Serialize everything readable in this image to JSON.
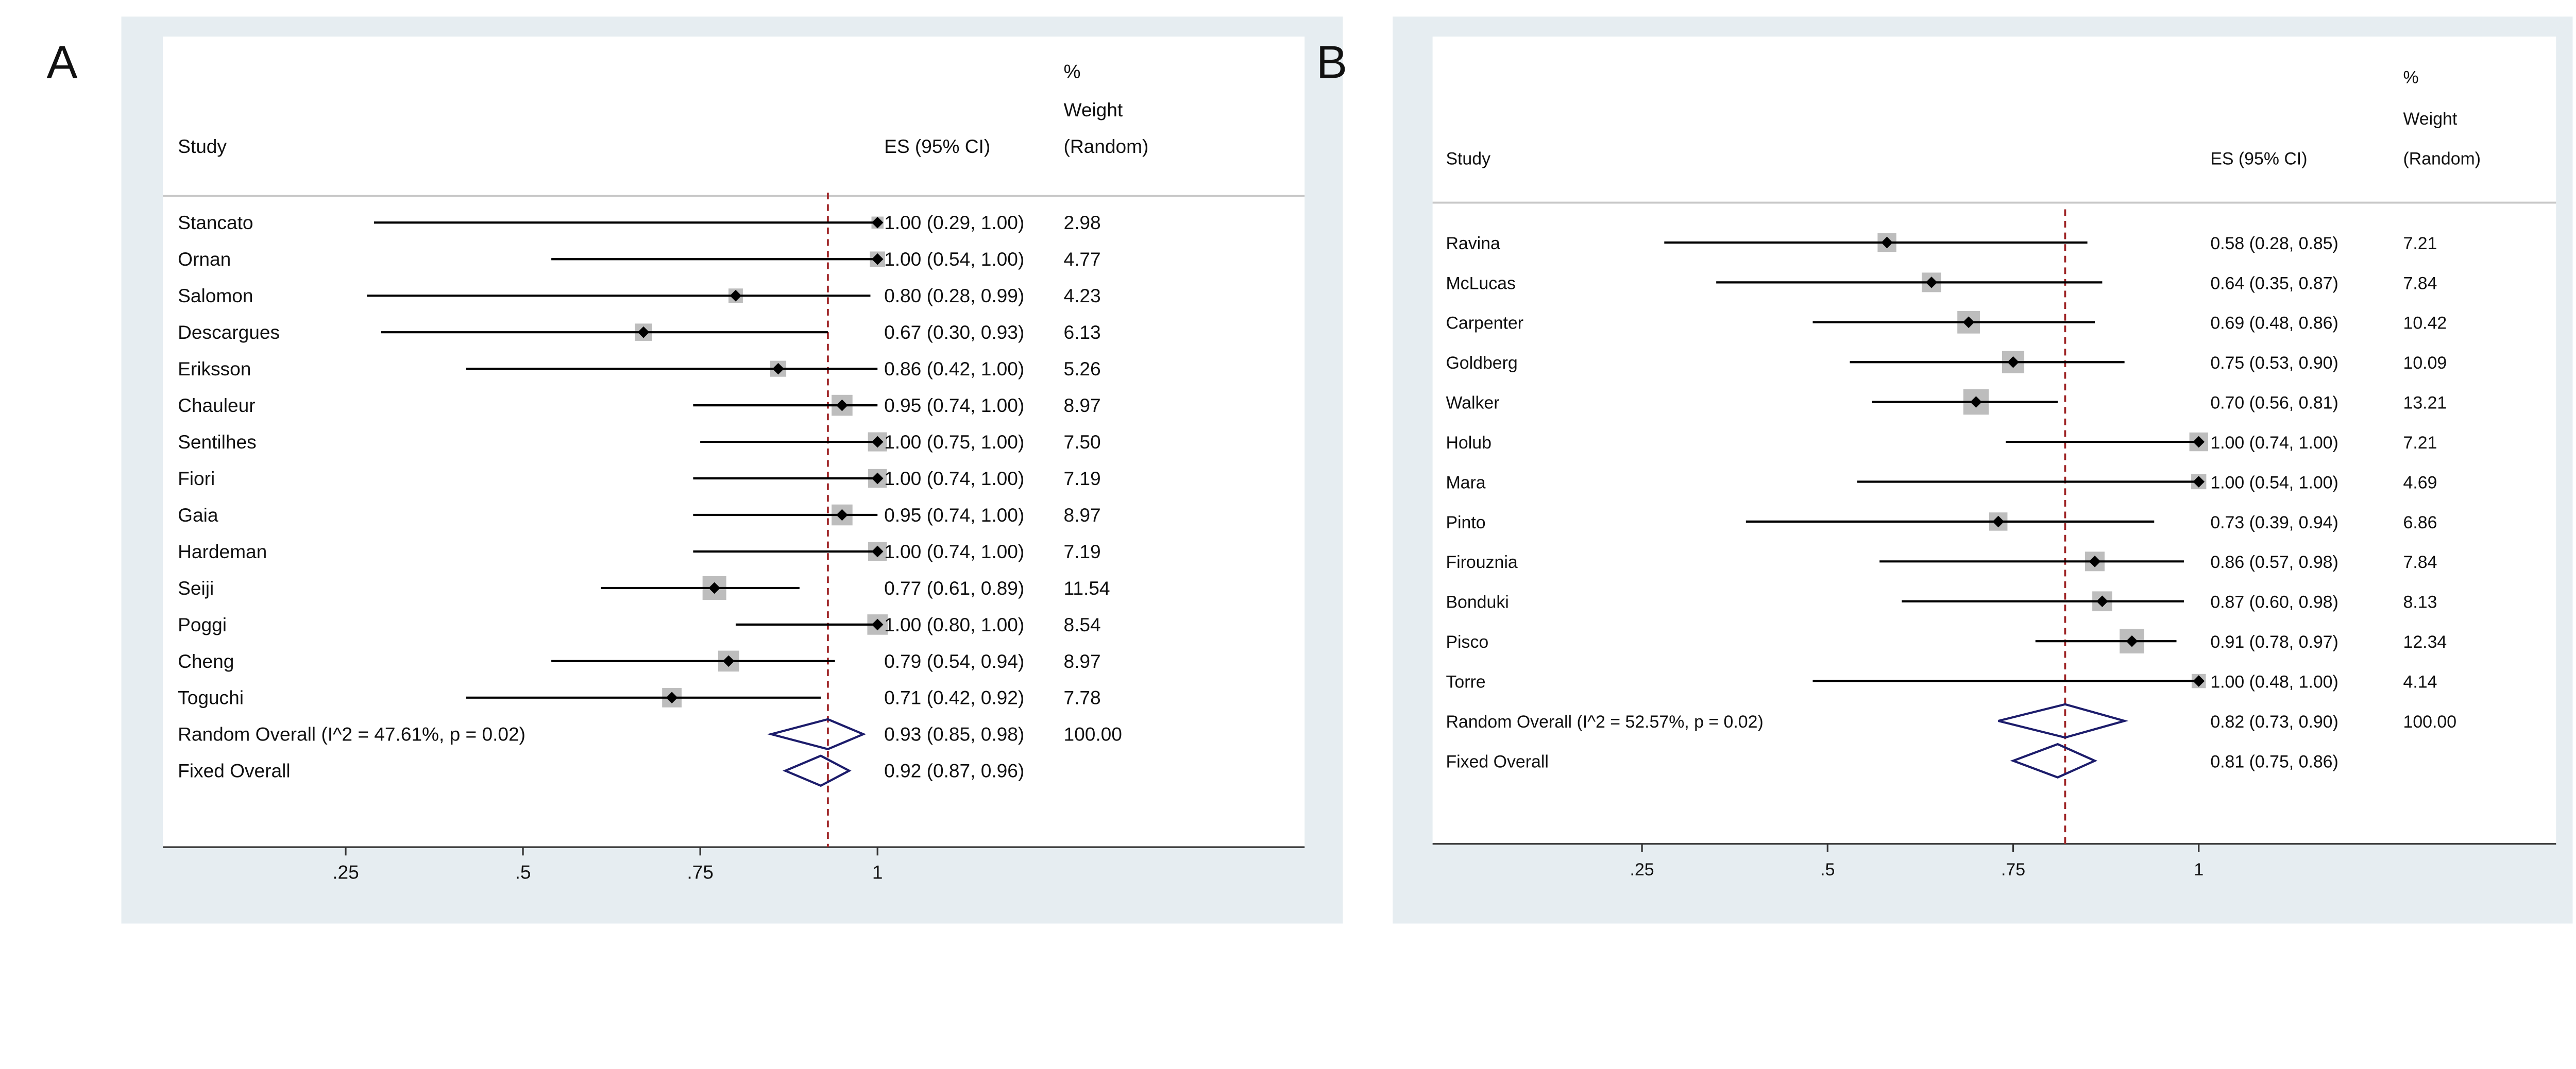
{
  "chart_data": [
    {
      "type": "forest",
      "panel_label": "A",
      "headers": {
        "study": "Study",
        "es": "ES (95% CI)",
        "weight_lines": [
          "%",
          "Weight",
          "(Random)"
        ]
      },
      "x_ticks": [
        0.25,
        0.5,
        0.75,
        1
      ],
      "x_tick_labels": [
        ".25",
        ".5",
        ".75",
        "1"
      ],
      "studies": [
        {
          "name": "Stancato",
          "es": 1.0,
          "lci": 0.29,
          "uci": 1.0,
          "es_text": "1.00 (0.29, 1.00)",
          "weight": "2.98"
        },
        {
          "name": "Ornan",
          "es": 1.0,
          "lci": 0.54,
          "uci": 1.0,
          "es_text": "1.00 (0.54, 1.00)",
          "weight": "4.77"
        },
        {
          "name": "Salomon",
          "es": 0.8,
          "lci": 0.28,
          "uci": 0.99,
          "es_text": "0.80 (0.28, 0.99)",
          "weight": "4.23"
        },
        {
          "name": "Descargues",
          "es": 0.67,
          "lci": 0.3,
          "uci": 0.93,
          "es_text": "0.67 (0.30, 0.93)",
          "weight": "6.13"
        },
        {
          "name": "Eriksson",
          "es": 0.86,
          "lci": 0.42,
          "uci": 1.0,
          "es_text": "0.86 (0.42, 1.00)",
          "weight": "5.26"
        },
        {
          "name": "Chauleur",
          "es": 0.95,
          "lci": 0.74,
          "uci": 1.0,
          "es_text": "0.95 (0.74, 1.00)",
          "weight": "8.97"
        },
        {
          "name": "Sentilhes",
          "es": 1.0,
          "lci": 0.75,
          "uci": 1.0,
          "es_text": "1.00 (0.75, 1.00)",
          "weight": "7.50"
        },
        {
          "name": "Fiori",
          "es": 1.0,
          "lci": 0.74,
          "uci": 1.0,
          "es_text": "1.00 (0.74, 1.00)",
          "weight": "7.19"
        },
        {
          "name": "Gaia",
          "es": 0.95,
          "lci": 0.74,
          "uci": 1.0,
          "es_text": "0.95 (0.74, 1.00)",
          "weight": "8.97"
        },
        {
          "name": "Hardeman",
          "es": 1.0,
          "lci": 0.74,
          "uci": 1.0,
          "es_text": "1.00 (0.74, 1.00)",
          "weight": "7.19"
        },
        {
          "name": "Seiji",
          "es": 0.77,
          "lci": 0.61,
          "uci": 0.89,
          "es_text": "0.77 (0.61, 0.89)",
          "weight": "11.54"
        },
        {
          "name": "Poggi",
          "es": 1.0,
          "lci": 0.8,
          "uci": 1.0,
          "es_text": "1.00 (0.80, 1.00)",
          "weight": "8.54"
        },
        {
          "name": "Cheng",
          "es": 0.79,
          "lci": 0.54,
          "uci": 0.94,
          "es_text": "0.79 (0.54, 0.94)",
          "weight": "8.97"
        },
        {
          "name": "Toguchi",
          "es": 0.71,
          "lci": 0.42,
          "uci": 0.92,
          "es_text": "0.71 (0.42, 0.92)",
          "weight": "7.78"
        }
      ],
      "overall": [
        {
          "name": "Random Overall  (I^2 = 47.61%, p = 0.02)",
          "es": 0.93,
          "lci": 0.85,
          "uci": 0.98,
          "es_text": "0.93 (0.85, 0.98)",
          "weight": "100.00"
        },
        {
          "name": "Fixed Overall",
          "es": 0.92,
          "lci": 0.87,
          "uci": 0.96,
          "es_text": "0.92 (0.87, 0.96)",
          "weight": ""
        }
      ]
    },
    {
      "type": "forest",
      "panel_label": "B",
      "headers": {
        "study": "Study",
        "es": "ES (95% CI)",
        "weight_lines": [
          "%",
          "Weight",
          "(Random)"
        ]
      },
      "x_ticks": [
        0.25,
        0.5,
        0.75,
        1
      ],
      "x_tick_labels": [
        ".25",
        ".5",
        ".75",
        "1"
      ],
      "studies": [
        {
          "name": "Ravina",
          "es": 0.58,
          "lci": 0.28,
          "uci": 0.85,
          "es_text": "0.58 (0.28, 0.85)",
          "weight": "7.21"
        },
        {
          "name": "McLucas",
          "es": 0.64,
          "lci": 0.35,
          "uci": 0.87,
          "es_text": "0.64 (0.35, 0.87)",
          "weight": "7.84"
        },
        {
          "name": "Carpenter",
          "es": 0.69,
          "lci": 0.48,
          "uci": 0.86,
          "es_text": "0.69 (0.48, 0.86)",
          "weight": "10.42"
        },
        {
          "name": "Goldberg",
          "es": 0.75,
          "lci": 0.53,
          "uci": 0.9,
          "es_text": "0.75 (0.53, 0.90)",
          "weight": "10.09"
        },
        {
          "name": "Walker",
          "es": 0.7,
          "lci": 0.56,
          "uci": 0.81,
          "es_text": "0.70 (0.56, 0.81)",
          "weight": "13.21"
        },
        {
          "name": "Holub",
          "es": 1.0,
          "lci": 0.74,
          "uci": 1.0,
          "es_text": "1.00 (0.74, 1.00)",
          "weight": "7.21"
        },
        {
          "name": "Mara",
          "es": 1.0,
          "lci": 0.54,
          "uci": 1.0,
          "es_text": "1.00 (0.54, 1.00)",
          "weight": "4.69"
        },
        {
          "name": "Pinto",
          "es": 0.73,
          "lci": 0.39,
          "uci": 0.94,
          "es_text": "0.73 (0.39, 0.94)",
          "weight": "6.86"
        },
        {
          "name": "Firouznia",
          "es": 0.86,
          "lci": 0.57,
          "uci": 0.98,
          "es_text": "0.86 (0.57, 0.98)",
          "weight": "7.84"
        },
        {
          "name": "Bonduki",
          "es": 0.87,
          "lci": 0.6,
          "uci": 0.98,
          "es_text": "0.87 (0.60, 0.98)",
          "weight": "8.13"
        },
        {
          "name": "Pisco",
          "es": 0.91,
          "lci": 0.78,
          "uci": 0.97,
          "es_text": "0.91 (0.78, 0.97)",
          "weight": "12.34"
        },
        {
          "name": "Torre",
          "es": 1.0,
          "lci": 0.48,
          "uci": 1.0,
          "es_text": "1.00 (0.48, 1.00)",
          "weight": "4.14"
        }
      ],
      "overall": [
        {
          "name": "Random Overall  (I^2 = 52.57%, p = 0.02)",
          "es": 0.82,
          "lci": 0.73,
          "uci": 0.9,
          "es_text": "0.82 (0.73, 0.90)",
          "weight": "100.00"
        },
        {
          "name": "Fixed Overall",
          "es": 0.81,
          "lci": 0.75,
          "uci": 0.86,
          "es_text": "0.81 (0.75, 0.86)",
          "weight": ""
        }
      ]
    }
  ],
  "colors": {
    "panel_bg": "#e6edf1",
    "plot_bg": "#ffffff",
    "ref_line": "#a0282a",
    "diamond": "#1c1c6b",
    "box": "#bdbdbd",
    "ci": "#000000"
  }
}
